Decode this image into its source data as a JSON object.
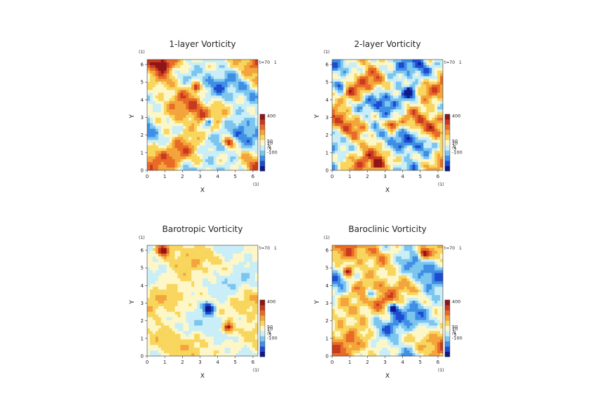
{
  "chart_data": [
    {
      "type": "heatmap",
      "title": "1-layer Vorticity",
      "xlabel": "X",
      "ylabel": "Y",
      "x_unit": "(1)",
      "y_unit": "(1)",
      "time_label": "t=70",
      "time_unit": "1",
      "xlim": [
        0,
        6.28
      ],
      "ylim": [
        0,
        6.28
      ],
      "x_ticks": [
        "0",
        "1",
        "2",
        "3",
        "4",
        "5",
        "6"
      ],
      "y_ticks": [
        "0",
        "1",
        "2",
        "3",
        "4",
        "5",
        "6"
      ],
      "colorbar": {
        "ticks": [
          "400",
          "50",
          "10",
          "1",
          "-1",
          "-5",
          "-100"
        ],
        "colors": [
          "#0c1a8c",
          "#1d4bd1",
          "#3f8ee6",
          "#7cc5ee",
          "#c9eef7",
          "#fdf7c8",
          "#f8d65e",
          "#f3a43a",
          "#e86a26",
          "#c83a1f",
          "#8f1616"
        ]
      },
      "features": {
        "style": "turbulent",
        "vortices": [
          [
            3.5,
            2.7,
            "neg"
          ],
          [
            4.6,
            1.6,
            "pos"
          ],
          [
            0.9,
            6.0,
            "pos"
          ],
          [
            2.8,
            4.7,
            "pos"
          ]
        ]
      }
    },
    {
      "type": "heatmap",
      "title": "2-layer Vorticity",
      "xlabel": "X",
      "ylabel": "Y",
      "x_unit": "(1)",
      "y_unit": "(1)",
      "time_label": "t=70",
      "time_unit": "1",
      "xlim": [
        0,
        6.28
      ],
      "ylim": [
        0,
        6.28
      ],
      "x_ticks": [
        "0",
        "1",
        "2",
        "3",
        "4",
        "5",
        "6"
      ],
      "y_ticks": [
        "0",
        "1",
        "2",
        "3",
        "4",
        "5",
        "6"
      ],
      "colorbar": {
        "ticks": [
          "400",
          "50",
          "10",
          "1",
          "-1",
          "-5",
          "-100"
        ],
        "colors": [
          "#0c1a8c",
          "#1d4bd1",
          "#3f8ee6",
          "#7cc5ee",
          "#c9eef7",
          "#fdf7c8",
          "#f8d65e",
          "#f3a43a",
          "#e86a26",
          "#c83a1f",
          "#8f1616"
        ]
      },
      "features": {
        "style": "filaments",
        "vortices": [
          [
            3.4,
            2.6,
            "pos"
          ],
          [
            4.4,
            4.4,
            "neg"
          ],
          [
            2.6,
            0.3,
            "pos"
          ],
          [
            0.5,
            4.8,
            "neg"
          ]
        ]
      }
    },
    {
      "type": "heatmap",
      "title": "Barotropic Vorticity",
      "xlabel": "X",
      "ylabel": "Y",
      "x_unit": "(1)",
      "y_unit": "(1)",
      "time_label": "t=70",
      "time_unit": "1",
      "xlim": [
        0,
        6.28
      ],
      "ylim": [
        0,
        6.28
      ],
      "x_ticks": [
        "0",
        "1",
        "2",
        "3",
        "4",
        "5",
        "6"
      ],
      "y_ticks": [
        "0",
        "1",
        "2",
        "3",
        "4",
        "5",
        "6"
      ],
      "colorbar": {
        "ticks": [
          "400",
          "50",
          "10",
          "1",
          "-1",
          "-5",
          "-100"
        ],
        "colors": [
          "#0c1a8c",
          "#1d4bd1",
          "#3f8ee6",
          "#7cc5ee",
          "#c9eef7",
          "#fdf7c8",
          "#f8d65e",
          "#f3a43a",
          "#e86a26",
          "#c83a1f",
          "#8f1616"
        ]
      },
      "features": {
        "style": "pale",
        "vortices": [
          [
            3.5,
            2.7,
            "neg"
          ],
          [
            0.9,
            6.0,
            "pos"
          ],
          [
            4.6,
            1.6,
            "pos"
          ]
        ]
      }
    },
    {
      "type": "heatmap",
      "title": "Baroclinic Vorticity",
      "xlabel": "X",
      "ylabel": "Y",
      "x_unit": "(1)",
      "y_unit": "(1)",
      "time_label": "t=70",
      "time_unit": "1",
      "xlim": [
        0,
        6.28
      ],
      "ylim": [
        0,
        6.28
      ],
      "x_ticks": [
        "0",
        "1",
        "2",
        "3",
        "4",
        "5",
        "6"
      ],
      "y_ticks": [
        "0",
        "1",
        "2",
        "3",
        "4",
        "5",
        "6"
      ],
      "colorbar": {
        "ticks": [
          "400",
          "50",
          "10",
          "1",
          "-1",
          "-5",
          "-100"
        ],
        "colors": [
          "#0c1a8c",
          "#1d4bd1",
          "#3f8ee6",
          "#7cc5ee",
          "#c9eef7",
          "#fdf7c8",
          "#f8d65e",
          "#f3a43a",
          "#e86a26",
          "#c83a1f",
          "#8f1616"
        ]
      },
      "features": {
        "style": "turbulent",
        "vortices": [
          [
            3.5,
            2.7,
            "neg"
          ],
          [
            0.9,
            4.8,
            "pos"
          ],
          [
            5.2,
            5.8,
            "pos"
          ],
          [
            2.2,
            3.5,
            "neg"
          ]
        ]
      }
    }
  ]
}
